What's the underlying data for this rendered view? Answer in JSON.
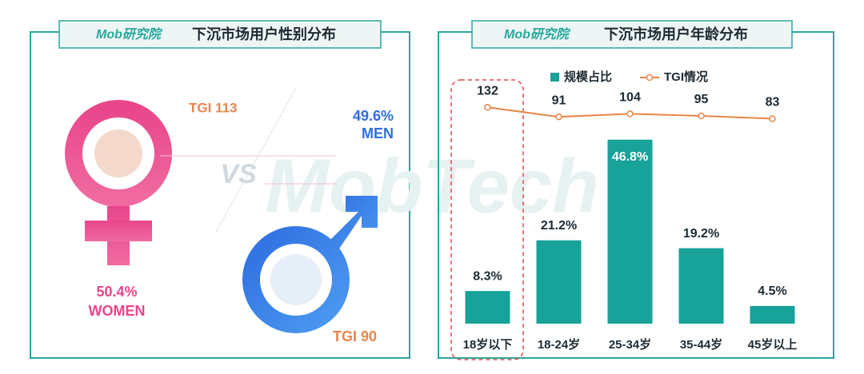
{
  "gender_panel": {
    "logo": "Mob研究院",
    "title": "下沉市场用户性别分布",
    "women_tgi": "TGI  113",
    "women_share": "50.4%",
    "women_label": "WOMEN",
    "men_share": "49.6%",
    "men_label": "MEN",
    "men_tgi": "TGI  90",
    "vs": "VS",
    "watermark": "MobTech"
  },
  "chart_data": {
    "type": "bar",
    "logo": "Mob研究院",
    "title": "下沉市场用户年龄分布",
    "categories": [
      "18岁以下",
      "18-24岁",
      "25-34岁",
      "35-44岁",
      "45岁以上"
    ],
    "series": [
      {
        "name": "规模占比",
        "color": "#17a29a",
        "values": [
          8.3,
          21.2,
          46.8,
          19.2,
          4.5
        ],
        "value_labels": [
          "8.3%",
          "21.2%",
          "46.8%",
          "19.2%",
          "4.5%"
        ]
      },
      {
        "name": "TGI情况",
        "color": "#e8864a",
        "values": [
          132,
          91,
          104,
          95,
          83
        ],
        "axis": "y2"
      }
    ],
    "ylim": [
      0,
      62
    ],
    "y2lim": [
      -800,
      250
    ]
  }
}
